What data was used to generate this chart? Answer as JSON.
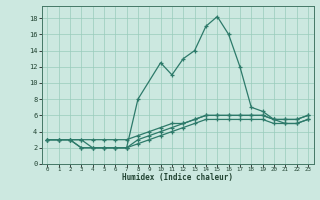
{
  "xlabel": "Humidex (Indice chaleur)",
  "bg_color": "#cce8e0",
  "grid_color": "#99ccbb",
  "line_color": "#2d7a6a",
  "xlim": [
    -0.5,
    23.5
  ],
  "ylim": [
    0,
    19.5
  ],
  "xticks": [
    0,
    1,
    2,
    3,
    4,
    5,
    6,
    7,
    8,
    9,
    10,
    11,
    12,
    13,
    14,
    15,
    16,
    17,
    18,
    19,
    20,
    21,
    22,
    23
  ],
  "yticks": [
    0,
    2,
    4,
    6,
    8,
    10,
    12,
    14,
    16,
    18
  ],
  "series": [
    {
      "x": [
        0,
        1,
        2,
        3,
        4,
        5,
        6,
        7,
        8,
        10,
        11,
        12,
        13,
        14,
        15,
        16,
        17,
        18,
        19,
        20,
        21,
        22,
        23
      ],
      "y": [
        3,
        3,
        3,
        3,
        2,
        2,
        2,
        2,
        8,
        12.5,
        11,
        13,
        14,
        17,
        18.2,
        16,
        12,
        7,
        6.5,
        5.5,
        5,
        5,
        5.5
      ]
    },
    {
      "x": [
        0,
        1,
        2,
        3,
        4,
        5,
        6,
        7,
        8,
        9,
        10,
        11,
        12,
        13,
        14,
        15,
        16,
        17,
        18,
        19,
        20,
        21,
        22,
        23
      ],
      "y": [
        3,
        3,
        3,
        3,
        3,
        3,
        3,
        3,
        3.5,
        4,
        4.5,
        5,
        5,
        5.5,
        6,
        6,
        6,
        6,
        6,
        6,
        5.5,
        5.5,
        5.5,
        6
      ]
    },
    {
      "x": [
        0,
        1,
        2,
        3,
        4,
        5,
        6,
        7,
        8,
        9,
        10,
        11,
        12,
        13,
        14,
        15,
        16,
        17,
        18,
        19,
        20,
        21,
        22,
        23
      ],
      "y": [
        3,
        3,
        3,
        2,
        2,
        2,
        2,
        2,
        2.5,
        3,
        3.5,
        4,
        4.5,
        5,
        5.5,
        5.5,
        5.5,
        5.5,
        5.5,
        5.5,
        5,
        5,
        5,
        5.5
      ]
    },
    {
      "x": [
        0,
        1,
        2,
        3,
        4,
        5,
        6,
        7,
        8,
        9,
        10,
        11,
        12,
        13,
        14,
        15,
        16,
        17,
        18,
        19,
        20,
        21,
        22,
        23
      ],
      "y": [
        3,
        3,
        3,
        2,
        2,
        2,
        2,
        2,
        3,
        3.5,
        4,
        4.5,
        5,
        5.5,
        6,
        6,
        6,
        6,
        6,
        6,
        5.5,
        5.5,
        5.5,
        6
      ]
    }
  ]
}
